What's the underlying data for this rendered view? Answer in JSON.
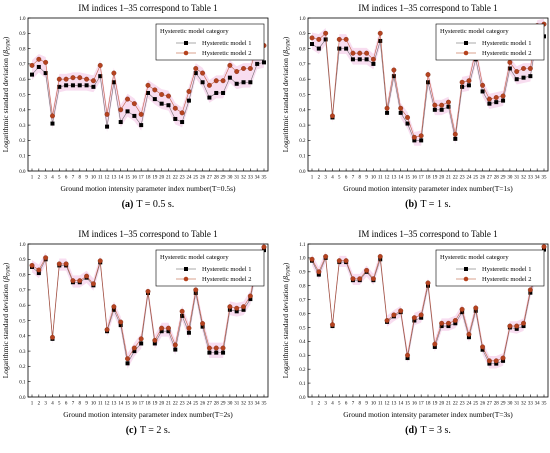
{
  "figure": {
    "colors": {
      "model1": "#000000",
      "model2": "#b5431f",
      "band": "#f2c1e3",
      "line": "#555555"
    }
  },
  "chart_data": [
    {
      "type": "line",
      "title": "IM indices 1–35 correspond to Table 1",
      "xlabel": "Ground motion intensity parameter index number(T=0.5s)",
      "ylabel_main": "Logarithmic standard deviation (",
      "ylabel_beta": "β",
      "ylabel_sub": "D|IM",
      "ylabel_end": ")",
      "caption_letter": "(a)",
      "caption_text": "T = 0.5 s.",
      "legend_title": "Hysteretic model category",
      "ylim": [
        0.0,
        1.0
      ],
      "yticks": [
        "0.0",
        "0.1",
        "0.2",
        "0.3",
        "0.4",
        "0.5",
        "0.6",
        "0.7",
        "0.8",
        "0.9",
        "1.0"
      ],
      "x": [
        1,
        2,
        3,
        4,
        5,
        6,
        7,
        8,
        9,
        10,
        11,
        12,
        13,
        14,
        15,
        16,
        17,
        18,
        19,
        20,
        21,
        22,
        23,
        24,
        25,
        26,
        27,
        28,
        29,
        30,
        31,
        32,
        33,
        34,
        35
      ],
      "series": [
        {
          "name": "Hysteretic model 1",
          "values": [
            0.63,
            0.68,
            0.64,
            0.31,
            0.55,
            0.56,
            0.56,
            0.56,
            0.56,
            0.55,
            0.62,
            0.29,
            0.58,
            0.32,
            0.39,
            0.36,
            0.3,
            0.51,
            0.47,
            0.44,
            0.43,
            0.34,
            0.32,
            0.46,
            0.64,
            0.58,
            0.48,
            0.51,
            0.51,
            0.61,
            0.57,
            0.58,
            0.58,
            0.7,
            0.71
          ]
        },
        {
          "name": "Hysteretic model 2",
          "values": [
            0.69,
            0.73,
            0.71,
            0.36,
            0.6,
            0.6,
            0.61,
            0.61,
            0.6,
            0.59,
            0.69,
            0.37,
            0.64,
            0.4,
            0.47,
            0.44,
            0.37,
            0.56,
            0.53,
            0.5,
            0.49,
            0.41,
            0.38,
            0.52,
            0.67,
            0.64,
            0.56,
            0.59,
            0.59,
            0.69,
            0.65,
            0.67,
            0.67,
            0.81,
            0.82
          ]
        }
      ]
    },
    {
      "type": "line",
      "title": "IM indices 1–35 correspond to Table 1",
      "xlabel": "Ground motion intensity parameter index number(T=1s)",
      "ylabel_main": "Logarithmic standard deviation (",
      "ylabel_beta": "β",
      "ylabel_sub": "D|IM",
      "ylabel_end": ")",
      "caption_letter": "(b)",
      "caption_text": "T = 1 s.",
      "legend_title": "Hysteretic model category",
      "ylim": [
        0.0,
        1.0
      ],
      "yticks": [
        "0.0",
        "0.1",
        "0.2",
        "0.3",
        "0.4",
        "0.5",
        "0.6",
        "0.7",
        "0.8",
        "0.9",
        "1.0"
      ],
      "x": [
        1,
        2,
        3,
        4,
        5,
        6,
        7,
        8,
        9,
        10,
        11,
        12,
        13,
        14,
        15,
        16,
        17,
        18,
        19,
        20,
        21,
        22,
        23,
        24,
        25,
        26,
        27,
        28,
        29,
        30,
        31,
        32,
        33,
        34,
        35
      ],
      "series": [
        {
          "name": "Hysteretic model 1",
          "values": [
            0.83,
            0.8,
            0.86,
            0.35,
            0.8,
            0.8,
            0.73,
            0.73,
            0.73,
            0.7,
            0.85,
            0.38,
            0.62,
            0.38,
            0.31,
            0.2,
            0.2,
            0.58,
            0.4,
            0.4,
            0.42,
            0.21,
            0.55,
            0.56,
            0.73,
            0.52,
            0.44,
            0.45,
            0.46,
            0.67,
            0.6,
            0.61,
            0.62,
            0.88,
            0.88
          ]
        },
        {
          "name": "Hysteretic model 2",
          "values": [
            0.87,
            0.86,
            0.9,
            0.36,
            0.86,
            0.86,
            0.77,
            0.77,
            0.77,
            0.73,
            0.9,
            0.41,
            0.66,
            0.41,
            0.35,
            0.22,
            0.23,
            0.63,
            0.43,
            0.43,
            0.45,
            0.24,
            0.58,
            0.59,
            0.79,
            0.56,
            0.47,
            0.48,
            0.49,
            0.71,
            0.65,
            0.67,
            0.67,
            0.95,
            0.96
          ]
        }
      ]
    },
    {
      "type": "line",
      "title": "IM indices 1–35 correspond to Table 1",
      "xlabel": "Ground motion intensity parameter index number(T=2s)",
      "ylabel_main": "Logarithmic standard deviation (",
      "ylabel_beta": "β",
      "ylabel_sub": "D|IM",
      "ylabel_end": ")",
      "caption_letter": "(c)",
      "caption_text": "T = 2 s.",
      "legend_title": "Hysteretic model category",
      "ylim": [
        0.0,
        1.0
      ],
      "yticks": [
        "0.0",
        "0.1",
        "0.2",
        "0.3",
        "0.4",
        "0.5",
        "0.6",
        "0.7",
        "0.8",
        "0.9",
        "1.0"
      ],
      "x": [
        1,
        2,
        3,
        4,
        5,
        6,
        7,
        8,
        9,
        10,
        11,
        12,
        13,
        14,
        15,
        16,
        17,
        18,
        19,
        20,
        21,
        22,
        23,
        24,
        25,
        26,
        27,
        28,
        29,
        30,
        31,
        32,
        33,
        34,
        35
      ],
      "series": [
        {
          "name": "Hysteretic model 1",
          "values": [
            0.85,
            0.81,
            0.9,
            0.38,
            0.86,
            0.86,
            0.75,
            0.75,
            0.78,
            0.73,
            0.88,
            0.43,
            0.57,
            0.47,
            0.22,
            0.3,
            0.35,
            0.68,
            0.35,
            0.43,
            0.43,
            0.31,
            0.53,
            0.42,
            0.68,
            0.46,
            0.29,
            0.29,
            0.29,
            0.57,
            0.56,
            0.57,
            0.64,
            0.87,
            0.96
          ]
        },
        {
          "name": "Hysteretic model 2",
          "values": [
            0.86,
            0.83,
            0.91,
            0.39,
            0.87,
            0.87,
            0.76,
            0.76,
            0.79,
            0.74,
            0.89,
            0.44,
            0.59,
            0.49,
            0.25,
            0.32,
            0.38,
            0.69,
            0.37,
            0.45,
            0.45,
            0.34,
            0.56,
            0.45,
            0.7,
            0.48,
            0.32,
            0.32,
            0.32,
            0.59,
            0.58,
            0.59,
            0.66,
            0.89,
            0.98
          ]
        }
      ]
    },
    {
      "type": "line",
      "title": "IM indices 1–35 correspond to Table 1",
      "xlabel": "Ground motion intensity parameter index number(T=3s)",
      "ylabel_main": "Logarithmic standard deviation (",
      "ylabel_beta": "β",
      "ylabel_sub": "D|IM",
      "ylabel_end": ")",
      "caption_letter": "(d)",
      "caption_text": "T = 3 s.",
      "legend_title": "Hysteretic model category",
      "ylim": [
        0.0,
        1.1
      ],
      "yticks": [
        "0.0",
        "0.1",
        "0.2",
        "0.3",
        "0.4",
        "0.5",
        "0.6",
        "0.7",
        "0.8",
        "0.9",
        "1.0",
        "1.1"
      ],
      "x": [
        1,
        2,
        3,
        4,
        5,
        6,
        7,
        8,
        9,
        10,
        11,
        12,
        13,
        14,
        15,
        16,
        17,
        18,
        19,
        20,
        21,
        22,
        23,
        24,
        25,
        26,
        27,
        28,
        29,
        30,
        31,
        32,
        33,
        34,
        35
      ],
      "series": [
        {
          "name": "Hysteretic model 1",
          "values": [
            0.98,
            0.88,
            1.0,
            0.51,
            0.97,
            0.97,
            0.84,
            0.84,
            0.9,
            0.84,
            0.99,
            0.54,
            0.58,
            0.61,
            0.28,
            0.55,
            0.57,
            0.8,
            0.36,
            0.51,
            0.51,
            0.53,
            0.61,
            0.43,
            0.62,
            0.34,
            0.24,
            0.24,
            0.26,
            0.5,
            0.49,
            0.51,
            0.75,
            0.9,
            1.06
          ]
        },
        {
          "name": "Hysteretic model 2",
          "values": [
            0.99,
            0.9,
            1.01,
            0.52,
            0.98,
            0.98,
            0.85,
            0.85,
            0.91,
            0.85,
            1.01,
            0.55,
            0.59,
            0.62,
            0.3,
            0.57,
            0.59,
            0.82,
            0.38,
            0.53,
            0.53,
            0.55,
            0.63,
            0.45,
            0.64,
            0.36,
            0.26,
            0.26,
            0.28,
            0.51,
            0.51,
            0.53,
            0.77,
            0.92,
            1.08
          ]
        }
      ]
    }
  ]
}
